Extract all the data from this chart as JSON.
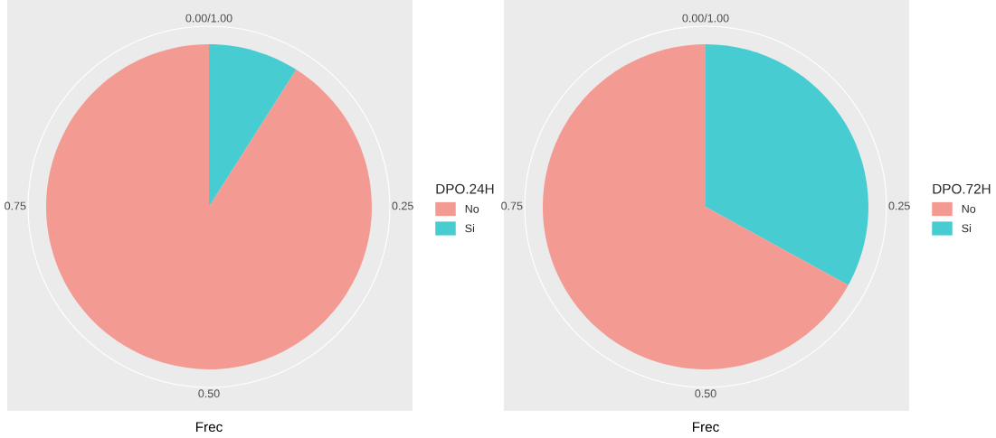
{
  "chart_data": [
    {
      "type": "pie",
      "xlabel": "Frec",
      "legend_title": "DPO.24H",
      "categories": [
        "Si",
        "No"
      ],
      "values": [
        9,
        91
      ],
      "colors": [
        "#47cdd1",
        "#f39a93"
      ],
      "annotations": [
        "0.00/1.00",
        "0.25",
        "0.50",
        "0.75"
      ],
      "grid": true,
      "legend": "right"
    },
    {
      "type": "pie",
      "xlabel": "Frec",
      "legend_title": "DPO.72H",
      "categories": [
        "Si",
        "No"
      ],
      "values": [
        33,
        67
      ],
      "colors": [
        "#47cdd1",
        "#f39a93"
      ],
      "annotations": [
        "0.00/1.00",
        "0.25",
        "0.50",
        "0.75"
      ],
      "grid": true,
      "legend": "right"
    }
  ]
}
